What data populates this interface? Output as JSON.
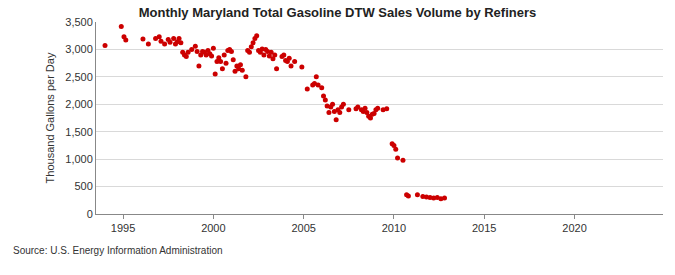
{
  "chart_data": {
    "type": "scatter",
    "title": "Monthly Maryland Total Gasoline DTW Sales Volume by Refiners",
    "y_label": "Thousand Gallons per Day",
    "annotations": [
      {
        "text": "Source: U.S. Energy Information Administration"
      }
    ],
    "x": [
      1994.0,
      1994.9,
      1995.05,
      1995.15,
      1996.1,
      1996.4,
      1996.8,
      1997.0,
      1997.1,
      1997.3,
      1997.5,
      1997.6,
      1997.8,
      1997.9,
      1998.0,
      1998.1,
      1998.2,
      1998.3,
      1998.4,
      1998.5,
      1998.6,
      1998.8,
      1999.0,
      1999.1,
      1999.2,
      1999.3,
      1999.4,
      1999.5,
      1999.6,
      1999.7,
      1999.8,
      1999.9,
      2000.0,
      2000.1,
      2000.2,
      2000.3,
      2000.4,
      2000.5,
      2000.6,
      2000.7,
      2000.8,
      2000.9,
      2001.0,
      2001.1,
      2001.2,
      2001.3,
      2001.4,
      2001.5,
      2001.6,
      2001.8,
      2001.9,
      2002.0,
      2002.1,
      2002.2,
      2002.3,
      2002.4,
      2002.5,
      2002.6,
      2002.7,
      2002.8,
      2002.9,
      2003.0,
      2003.1,
      2003.2,
      2003.3,
      2003.4,
      2003.5,
      2003.8,
      2003.9,
      2004.0,
      2004.1,
      2004.2,
      2004.3,
      2004.5,
      2004.9,
      2005.2,
      2005.5,
      2005.6,
      2005.7,
      2005.8,
      2006.0,
      2006.1,
      2006.2,
      2006.3,
      2006.4,
      2006.5,
      2006.6,
      2006.7,
      2006.8,
      2006.9,
      2007.0,
      2007.1,
      2007.2,
      2007.5,
      2007.9,
      2008.0,
      2008.2,
      2008.3,
      2008.4,
      2008.5,
      2008.6,
      2008.7,
      2008.8,
      2008.9,
      2009.0,
      2009.1,
      2009.4,
      2009.6,
      2009.9,
      2010.0,
      2010.1,
      2010.2,
      2010.5,
      2010.7,
      2010.8,
      2011.3,
      2011.6,
      2011.8,
      2012.0,
      2012.2,
      2012.4,
      2012.6,
      2012.8
    ],
    "values": [
      3070,
      3420,
      3230,
      3170,
      3190,
      3100,
      3200,
      3230,
      3150,
      3100,
      3180,
      3130,
      3200,
      3100,
      3140,
      3200,
      3120,
      2950,
      2900,
      2870,
      2950,
      3000,
      3060,
      2960,
      2700,
      2900,
      2960,
      2950,
      2900,
      2980,
      2920,
      2880,
      3020,
      2550,
      2780,
      2850,
      2780,
      2650,
      2900,
      2750,
      2980,
      3000,
      2960,
      2810,
      2600,
      2700,
      2650,
      2720,
      2620,
      2500,
      2980,
      2950,
      3050,
      3120,
      3200,
      3250,
      2980,
      2950,
      3010,
      2900,
      3000,
      2960,
      2880,
      2950,
      2830,
      2900,
      2650,
      2870,
      2900,
      2800,
      2780,
      2840,
      2700,
      2780,
      2680,
      2280,
      2350,
      2380,
      2500,
      2350,
      2300,
      2150,
      2080,
      1970,
      1850,
      1950,
      2000,
      1870,
      1720,
      1900,
      1850,
      1950,
      2000,
      1900,
      1920,
      1950,
      1900,
      1870,
      1930,
      1850,
      1780,
      1750,
      1820,
      1830,
      1900,
      1930,
      1900,
      1920,
      1280,
      1250,
      1180,
      1020,
      980,
      350,
      330,
      350,
      320,
      310,
      300,
      290,
      300,
      280,
      290
    ],
    "color": "#cc0000",
    "marker": "circle",
    "xlim": [
      1993.5,
      2024.9
    ],
    "xticks": [
      1995,
      2000,
      2005,
      2010,
      2015,
      2020
    ],
    "ylim": [
      0,
      3500
    ],
    "yticks": [
      0,
      500,
      {
        "value": 1000,
        "label": "1,000"
      },
      {
        "value": 1500,
        "label": "1,500"
      },
      {
        "value": 2000,
        "label": "2,000"
      },
      {
        "value": 2500,
        "label": "2,500"
      },
      {
        "value": 3000,
        "label": "3,000"
      },
      {
        "value": 3500,
        "label": "3,500"
      }
    ],
    "grid": true
  }
}
